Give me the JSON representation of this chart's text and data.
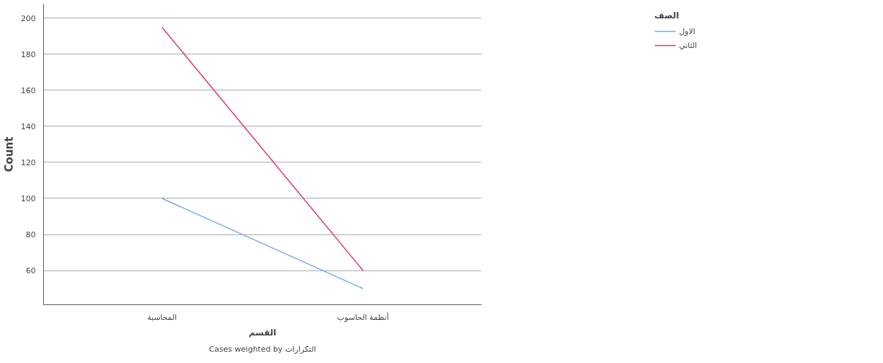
{
  "chart_data": {
    "type": "line",
    "categories": [
      "المحاسبة",
      "أنظمة الحاسوب"
    ],
    "series": [
      {
        "name": "الاول",
        "color": "#6fa8e8",
        "values": [
          100,
          50
        ]
      },
      {
        "name": "الثاني",
        "color": "#d93a63",
        "values": [
          195,
          60
        ]
      }
    ],
    "xlabel": "القسم",
    "ylabel": "Count",
    "legend_title": "الصف",
    "annotations": [
      "Cases weighted by التكرارات"
    ],
    "ylim": [
      41,
      208
    ],
    "yticks": [
      60,
      80,
      100,
      120,
      140,
      160,
      180,
      200
    ],
    "grid": "y",
    "legend": "top right",
    "marker": "none",
    "line_style": "solid"
  }
}
